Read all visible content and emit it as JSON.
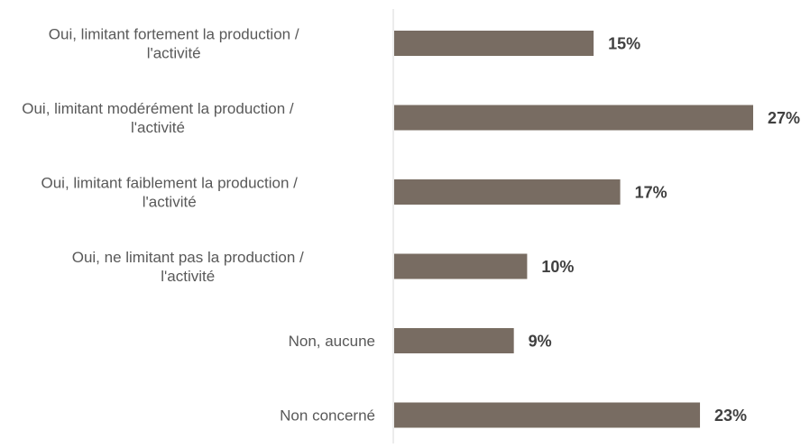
{
  "chart_data": {
    "type": "bar",
    "orientation": "horizontal",
    "categories": [
      [
        "Oui, limitant fortement la production /",
        "l'activité"
      ],
      [
        "Oui, limitant modérément la production /",
        "l'activité"
      ],
      [
        "Oui, limitant faiblement la production /",
        "l'activité"
      ],
      [
        "Oui, ne limitant pas la production /",
        "l'activité"
      ],
      [
        "Non, aucune"
      ],
      [
        "Non concerné"
      ]
    ],
    "values": [
      15,
      27,
      17,
      10,
      9,
      23
    ],
    "value_labels": [
      "15%",
      "27%",
      "17%",
      "10%",
      "9%",
      "23%"
    ],
    "unit": "%",
    "xlim": [
      0,
      27
    ],
    "bar_color": "#786c62",
    "axis_color": "#d9d9d9",
    "grid": false,
    "legend": "none",
    "title": "",
    "xlabel": "",
    "ylabel": ""
  }
}
